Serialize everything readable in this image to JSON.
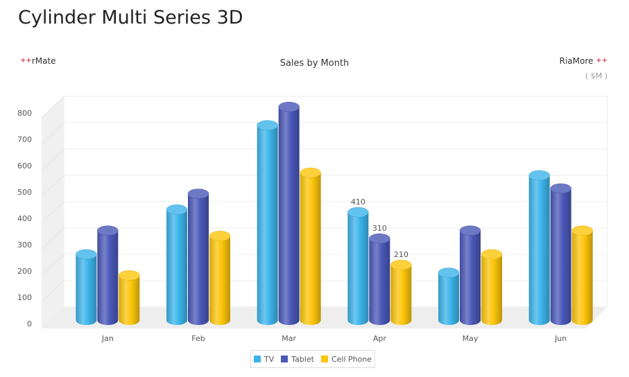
{
  "page": {
    "title": "Cylinder Multi Series 3D",
    "brand_left": "rMate",
    "brand_right": "RiaMore",
    "brand_mark": "+"
  },
  "chart_data": {
    "type": "bar",
    "style": "3d-cylinder",
    "title": "Sales by Month",
    "unit": "( $M )",
    "categories": [
      "Jan",
      "Feb",
      "Mar",
      "Apr",
      "May",
      "Jun"
    ],
    "series": [
      {
        "name": "TV",
        "color": "#3cb4ea",
        "values": [
          250,
          420,
          740,
          410,
          180,
          550
        ]
      },
      {
        "name": "Tablet",
        "color": "#4a58b8",
        "values": [
          340,
          480,
          810,
          310,
          340,
          500
        ]
      },
      {
        "name": "Cell Phone",
        "color": "#fcc50a",
        "values": [
          170,
          320,
          560,
          210,
          250,
          340
        ]
      }
    ],
    "data_labels": [
      {
        "series": "TV",
        "category": "Apr",
        "text": "410"
      },
      {
        "series": "Tablet",
        "category": "Apr",
        "text": "310"
      },
      {
        "series": "Cell Phone",
        "category": "Apr",
        "text": "210"
      }
    ],
    "yticks": [
      "0",
      "100",
      "200",
      "300",
      "400",
      "500",
      "600",
      "700",
      "800"
    ],
    "ylim": [
      0,
      800
    ],
    "grid": true,
    "legend_position": "bottom"
  }
}
